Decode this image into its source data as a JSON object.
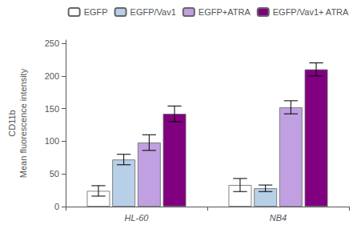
{
  "chart_data": {
    "type": "bar",
    "categories": [
      "HL-60",
      "NB4"
    ],
    "series": [
      {
        "name": "EGFP",
        "color": "#ffffff",
        "values": [
          24,
          33
        ],
        "errors": [
          8,
          10
        ]
      },
      {
        "name": "EGFP/Vav1",
        "color": "#b8cfe8",
        "values": [
          72,
          28
        ],
        "errors": [
          8,
          5
        ]
      },
      {
        "name": "EGFP+ATRA",
        "color": "#c0a0e0",
        "values": [
          98,
          152
        ],
        "errors": [
          12,
          10
        ]
      },
      {
        "name": "EGFP/Vav1+ ATRA",
        "color": "#800080",
        "values": [
          142,
          210
        ],
        "errors": [
          12,
          10
        ]
      }
    ],
    "ylabel": "CD11b\nMean fluorescence intensity",
    "ylim": [
      0,
      255
    ],
    "yticks": [
      0,
      50,
      100,
      150,
      200,
      250
    ],
    "grid": false,
    "legend": "upper right"
  }
}
